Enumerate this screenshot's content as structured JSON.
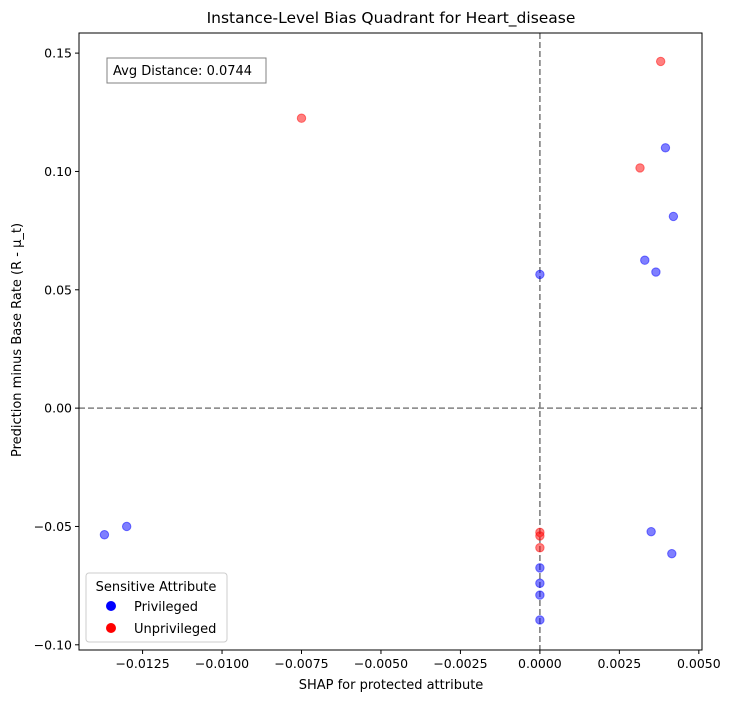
{
  "chart_data": {
    "type": "scatter",
    "title": "Instance-Level Bias Quadrant for Heart_disease",
    "xlabel": "SHAP for protected attribute",
    "ylabel": "Prediction minus Base Rate (R - μ_t)",
    "xlim": [
      -0.0145,
      0.0051
    ],
    "ylim": [
      -0.1022,
      0.1585
    ],
    "xticks": [
      -0.0125,
      -0.01,
      -0.0075,
      -0.005,
      -0.0025,
      0.0,
      0.0025,
      0.005
    ],
    "xtick_labels": [
      "−0.0125",
      "−0.0100",
      "−0.0075",
      "−0.0050",
      "−0.0025",
      "0.0000",
      "0.0025",
      "0.0050"
    ],
    "yticks": [
      -0.1,
      -0.05,
      0.0,
      0.05,
      0.1,
      0.15
    ],
    "ytick_labels": [
      "−0.10",
      "−0.05",
      "0.00",
      "0.05",
      "0.10",
      "0.15"
    ],
    "reference_lines": {
      "x": 0,
      "y": 0,
      "style": "dashed",
      "color": "#808080"
    },
    "annotation": "Avg Distance: 0.0744",
    "legend": {
      "title": "Sensitive Attribute",
      "placement": "lower-left",
      "entries": [
        {
          "label": "Privileged",
          "color": "#0000ff"
        },
        {
          "label": "Unprivileged",
          "color": "#ff0000"
        }
      ]
    },
    "series": [
      {
        "name": "Privileged",
        "color": "#0000ff",
        "points": [
          {
            "x": 0.0,
            "y": 0.0565
          },
          {
            "x": 0.0033,
            "y": 0.0625
          },
          {
            "x": 0.00365,
            "y": 0.0575
          },
          {
            "x": 0.0042,
            "y": 0.081
          },
          {
            "x": 0.00395,
            "y": 0.11
          },
          {
            "x": -0.0137,
            "y": -0.0535
          },
          {
            "x": -0.013,
            "y": -0.05
          },
          {
            "x": 0.0035,
            "y": -0.0522
          },
          {
            "x": 0.00415,
            "y": -0.0615
          },
          {
            "x": 0.0,
            "y": -0.0675
          },
          {
            "x": 0.0,
            "y": -0.074
          },
          {
            "x": 0.0,
            "y": -0.079
          },
          {
            "x": 0.0,
            "y": -0.0895
          }
        ]
      },
      {
        "name": "Unprivileged",
        "color": "#ff0000",
        "points": [
          {
            "x": 0.0038,
            "y": 0.1465
          },
          {
            "x": -0.0075,
            "y": 0.1225
          },
          {
            "x": 0.00315,
            "y": 0.1015
          },
          {
            "x": 0.0,
            "y": -0.0525
          },
          {
            "x": 0.0,
            "y": -0.054
          },
          {
            "x": 0.0,
            "y": -0.059
          }
        ]
      }
    ]
  }
}
